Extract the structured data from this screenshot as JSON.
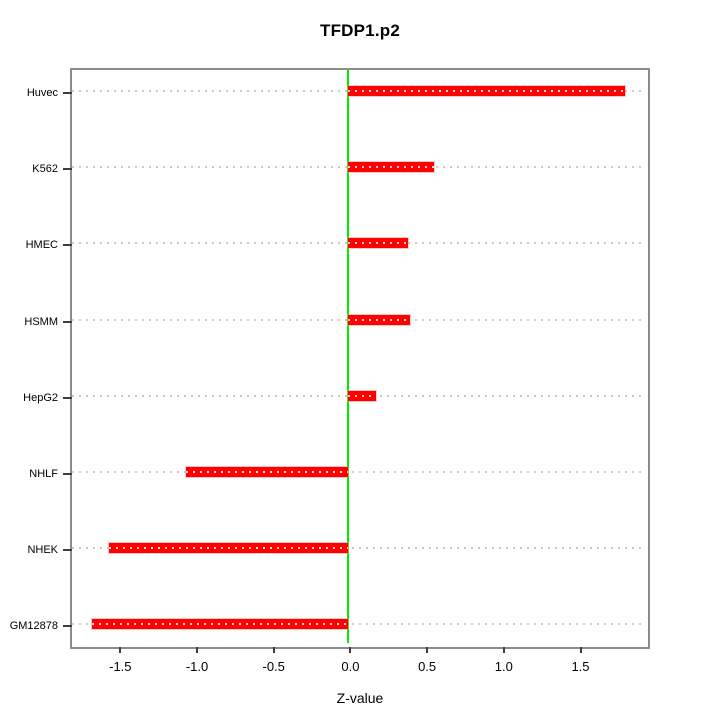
{
  "chart_data": {
    "type": "bar",
    "orientation": "horizontal",
    "title": "TFDP1.p2",
    "xlabel": "Z-value",
    "ylabel": "",
    "categories": [
      "Huvec",
      "K562",
      "HMEC",
      "HSMM",
      "HepG2",
      "NHLF",
      "NHEK",
      "GM12878"
    ],
    "values": [
      1.8,
      0.56,
      0.39,
      0.4,
      0.18,
      -1.06,
      -1.56,
      -1.67
    ],
    "xlim": [
      -1.815,
      1.94
    ],
    "x_ticks": [
      -1.5,
      -1.0,
      -0.5,
      0.0,
      0.5,
      1.0,
      1.5
    ],
    "x_tick_labels": [
      "-1.5",
      "-1.0",
      "-0.5",
      "0.0",
      "0.5",
      "1.0",
      "1.5"
    ],
    "zero_line_x": 0,
    "grid": "dotted horizontal line at each category",
    "legend": "none",
    "colors": {
      "bar": "#fe0000",
      "bar_center_dots": "#ffc9c9",
      "zero_line": "#00ee00",
      "grid_dots": "#c9c9c9",
      "box_border": "#8c8c8c",
      "ticks": "#3d3d3d",
      "text": "#000000",
      "background": "#ffffff"
    }
  }
}
